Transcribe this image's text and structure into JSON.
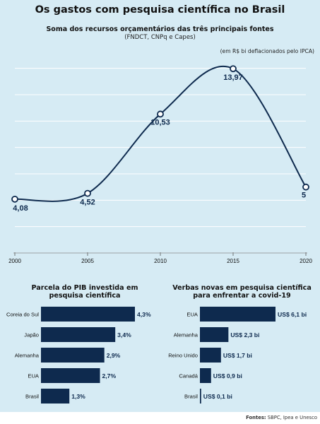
{
  "title": "Os gastos com pesquisa científica no Brasil",
  "footer": {
    "label": "Fontes:",
    "text": "SBPC, Ipea e Unesco"
  },
  "chart_data": [
    {
      "type": "line",
      "title": "Soma dos recursos orçamentários das três principais fontes",
      "subtitle": "(FNDCT, CNPq e Capes)",
      "unit_note": "(em R$ bi deflacionados pelo IPCA)",
      "x": [
        2000,
        2005,
        2010,
        2015,
        2020
      ],
      "x_ticks": [
        "2000",
        "2005",
        "2010",
        "2015",
        "2020"
      ],
      "values": [
        4.08,
        4.52,
        10.53,
        13.97,
        5
      ],
      "value_labels": [
        "4,08",
        "4,52",
        "10,53",
        "13,97",
        "5"
      ],
      "ylim": [
        0,
        15
      ],
      "grid": true,
      "color": "#0e2a4e"
    },
    {
      "type": "bar",
      "orientation": "horizontal",
      "title": "Parcela do PIB investida em pesquisa científica",
      "categories": [
        "Coreia do Sul",
        "Japão",
        "Alemanha",
        "EUA",
        "Brasil"
      ],
      "values": [
        4.3,
        3.4,
        2.9,
        2.7,
        1.3
      ],
      "value_labels": [
        "4,3%",
        "3,4%",
        "2,9%",
        "2,7%",
        "1,3%"
      ],
      "color": "#0e2a4e"
    },
    {
      "type": "bar",
      "orientation": "horizontal",
      "title": "Verbas novas em pesquisa científica para enfrentar a covid-19",
      "categories": [
        "EUA",
        "Alemanha",
        "Reino Unido",
        "Canadá",
        "Brasil"
      ],
      "values": [
        6.1,
        2.3,
        1.7,
        0.9,
        0.1
      ],
      "value_labels": [
        "US$ 6,1 bi",
        "US$ 2,3 bi",
        "US$ 1,7 bi",
        "US$ 0,9 bi",
        "US$ 0,1 bi"
      ],
      "color": "#0e2a4e"
    }
  ]
}
